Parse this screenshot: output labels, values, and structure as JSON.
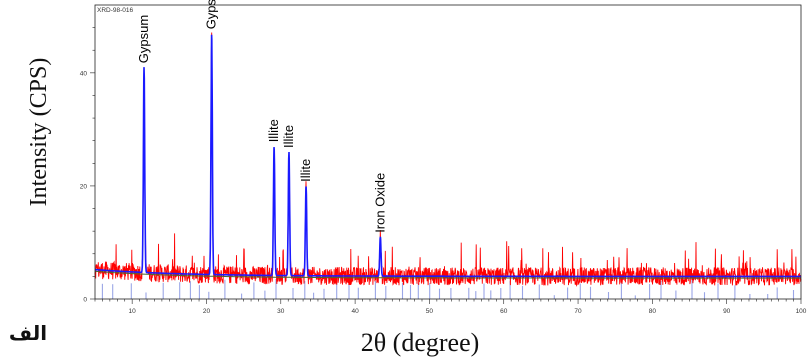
{
  "chart_data": {
    "type": "line",
    "sample_id": "XRD-98-016",
    "xlabel": "2θ (degree)",
    "ylabel": "Intensity (CPS)",
    "panel_label": "الف",
    "xlim": [
      5,
      100
    ],
    "ylim": [
      0,
      52
    ],
    "x_ticks": [
      10,
      20,
      30,
      40,
      50,
      60,
      70,
      80,
      90,
      100
    ],
    "y_ticks": [
      0,
      20,
      40
    ],
    "baseline_intensity": 4,
    "peaks": [
      {
        "x": 11.6,
        "y": 41,
        "label": "Gypsum"
      },
      {
        "x": 20.7,
        "y": 47,
        "label": "Gypsum"
      },
      {
        "x": 29.1,
        "y": 27,
        "label": "Illite"
      },
      {
        "x": 31.1,
        "y": 26,
        "label": "Illite"
      },
      {
        "x": 33.4,
        "y": 20,
        "label": "Illite"
      },
      {
        "x": 43.4,
        "y": 11,
        "label": "Iron Oxide"
      }
    ],
    "series": [
      {
        "role": "observed",
        "color": "#ff0000"
      },
      {
        "role": "fitted",
        "color": "#1a1aff"
      },
      {
        "role": "reference-lines",
        "color": "#9aa6e6"
      },
      {
        "role": "background",
        "color": "#4a6a2a"
      }
    ]
  }
}
